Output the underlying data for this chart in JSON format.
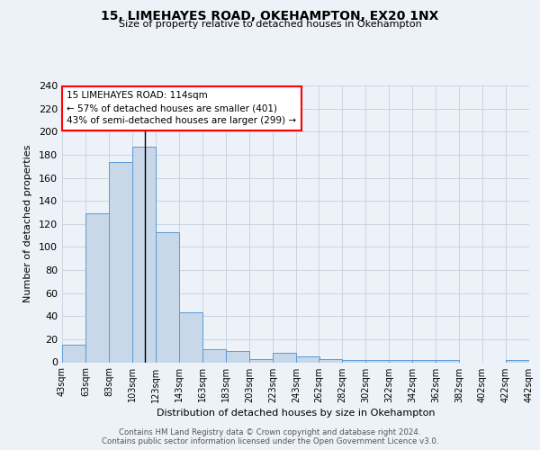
{
  "title": "15, LIMEHAYES ROAD, OKEHAMPTON, EX20 1NX",
  "subtitle": "Size of property relative to detached houses in Okehampton",
  "xlabel": "Distribution of detached houses by size in Okehampton",
  "ylabel": "Number of detached properties",
  "bin_edges": [
    43,
    63,
    83,
    103,
    123,
    143,
    163,
    183,
    203,
    223,
    243,
    262,
    282,
    302,
    322,
    342,
    362,
    382,
    402,
    422,
    442
  ],
  "bin_heights": [
    15,
    129,
    174,
    187,
    113,
    43,
    11,
    10,
    3,
    8,
    5,
    3,
    2,
    2,
    2,
    2,
    2,
    0,
    0,
    2
  ],
  "bar_color": "#c8d8e8",
  "bar_edge_color": "#5b9bd5",
  "property_line_x": 114,
  "ylim": [
    0,
    240
  ],
  "yticks": [
    0,
    20,
    40,
    60,
    80,
    100,
    120,
    140,
    160,
    180,
    200,
    220,
    240
  ],
  "xtick_labels": [
    "43sqm",
    "63sqm",
    "83sqm",
    "103sqm",
    "123sqm",
    "143sqm",
    "163sqm",
    "183sqm",
    "203sqm",
    "223sqm",
    "243sqm",
    "262sqm",
    "282sqm",
    "302sqm",
    "322sqm",
    "342sqm",
    "362sqm",
    "382sqm",
    "402sqm",
    "422sqm",
    "442sqm"
  ],
  "annotation_text": "15 LIMEHAYES ROAD: 114sqm\n← 57% of detached houses are smaller (401)\n43% of semi-detached houses are larger (299) →",
  "footer_line1": "Contains HM Land Registry data © Crown copyright and database right 2024.",
  "footer_line2": "Contains public sector information licensed under the Open Government Licence v3.0.",
  "bg_color": "#edf2f8",
  "plot_bg_color": "#edf2f8",
  "grid_color": "#c5d0dc"
}
